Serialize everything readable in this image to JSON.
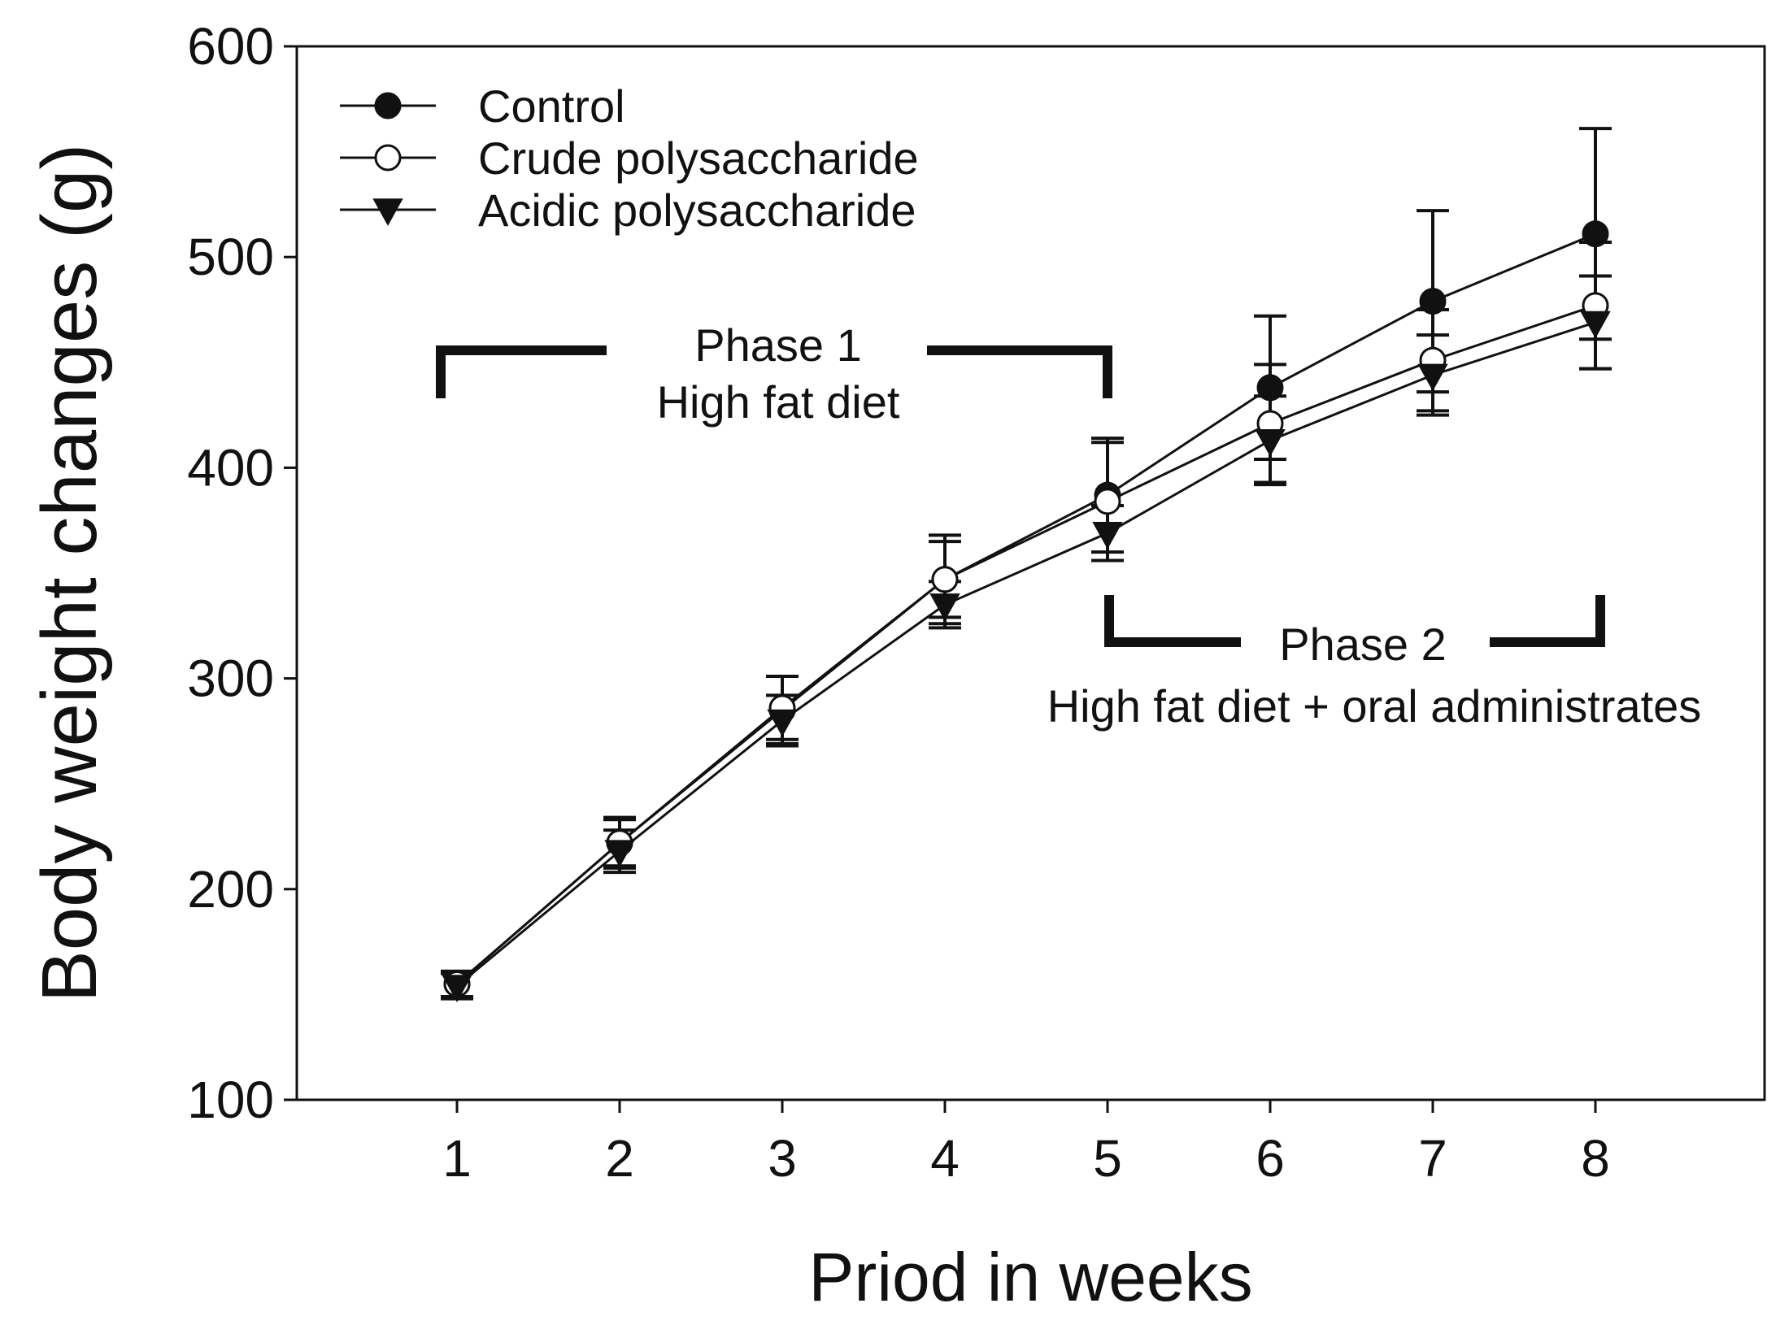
{
  "chart_data": {
    "type": "line",
    "title": "",
    "xlabel": "Priod in weeks",
    "ylabel": "Body weight changes (g)",
    "x": [
      1,
      2,
      3,
      4,
      5,
      6,
      7,
      8
    ],
    "xlim": [
      0,
      9
    ],
    "ylim": [
      100,
      600
    ],
    "xticks": [
      "1",
      "2",
      "3",
      "4",
      "5",
      "6",
      "7",
      "8"
    ],
    "yticks": [
      "100",
      "200",
      "300",
      "400",
      "500",
      "600"
    ],
    "legend_position": "top-left",
    "series": [
      {
        "name": "Control",
        "marker": "filled-circle",
        "values": [
          155,
          222,
          285,
          347,
          387,
          438,
          479,
          511
        ],
        "errors": [
          6,
          12,
          16,
          21,
          27,
          34,
          43,
          50
        ]
      },
      {
        "name": "Crude polysaccharide",
        "marker": "open-circle",
        "values": [
          155,
          222,
          286,
          347,
          384,
          421,
          451,
          477
        ],
        "errors": [
          6,
          11,
          15,
          18,
          28,
          28,
          24,
          30
        ]
      },
      {
        "name": "Acidic polysaccharide",
        "marker": "filled-triangle-down",
        "values": [
          154,
          218,
          280,
          335,
          369,
          413,
          444,
          469
        ],
        "errors": [
          6,
          10,
          12,
          11,
          13,
          21,
          19,
          22
        ]
      }
    ],
    "annotations": [
      {
        "id": "phase1",
        "title": "Phase 1",
        "subtitle": "High fat diet",
        "x_range": [
          1,
          5
        ]
      },
      {
        "id": "phase2",
        "title": "Phase 2",
        "subtitle": "High fat diet + oral administrates",
        "x_range": [
          5,
          8
        ]
      }
    ],
    "colors": {
      "ink": "#111111",
      "background": "#ffffff"
    }
  }
}
